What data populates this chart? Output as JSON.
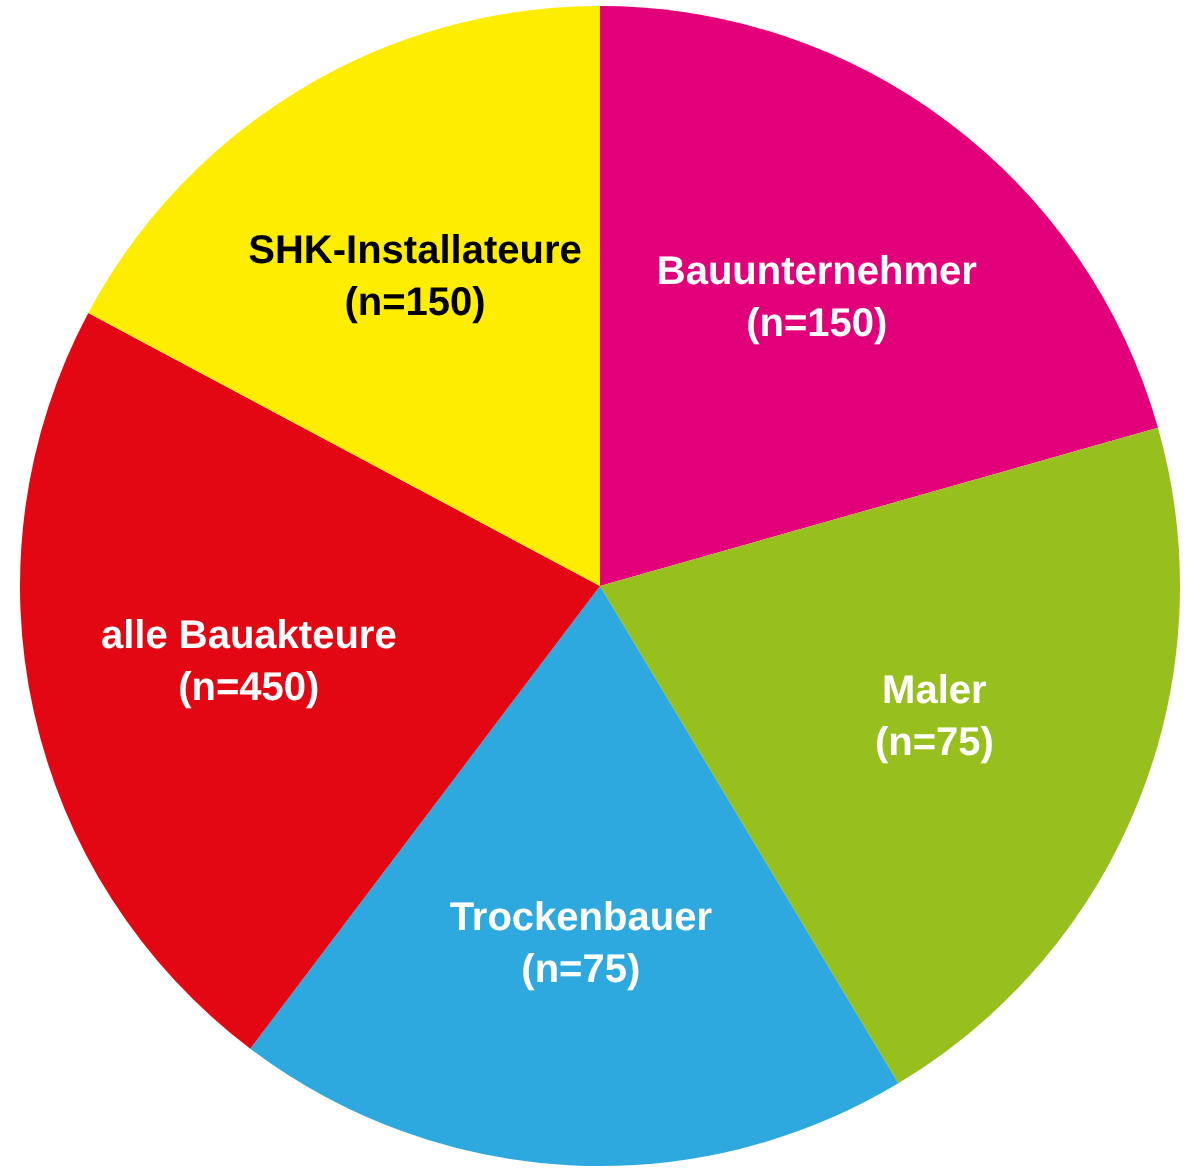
{
  "chart_data": {
    "type": "pie",
    "categories": [
      "Bauunternehmer\n(n=150)",
      "Maler\n(n=75)",
      "Trockenbauer\n(n=75)",
      "alle Bauakteure\n(n=450)",
      "SHK-Installateure\n(n=150)"
    ],
    "values": [
      20.6,
      20.8,
      18.9,
      22.5,
      17.2
    ],
    "colors": [
      "#e2007a",
      "#97bf1d",
      "#2ea9e0",
      "#e30613",
      "#ffed00"
    ],
    "legend": false
  }
}
